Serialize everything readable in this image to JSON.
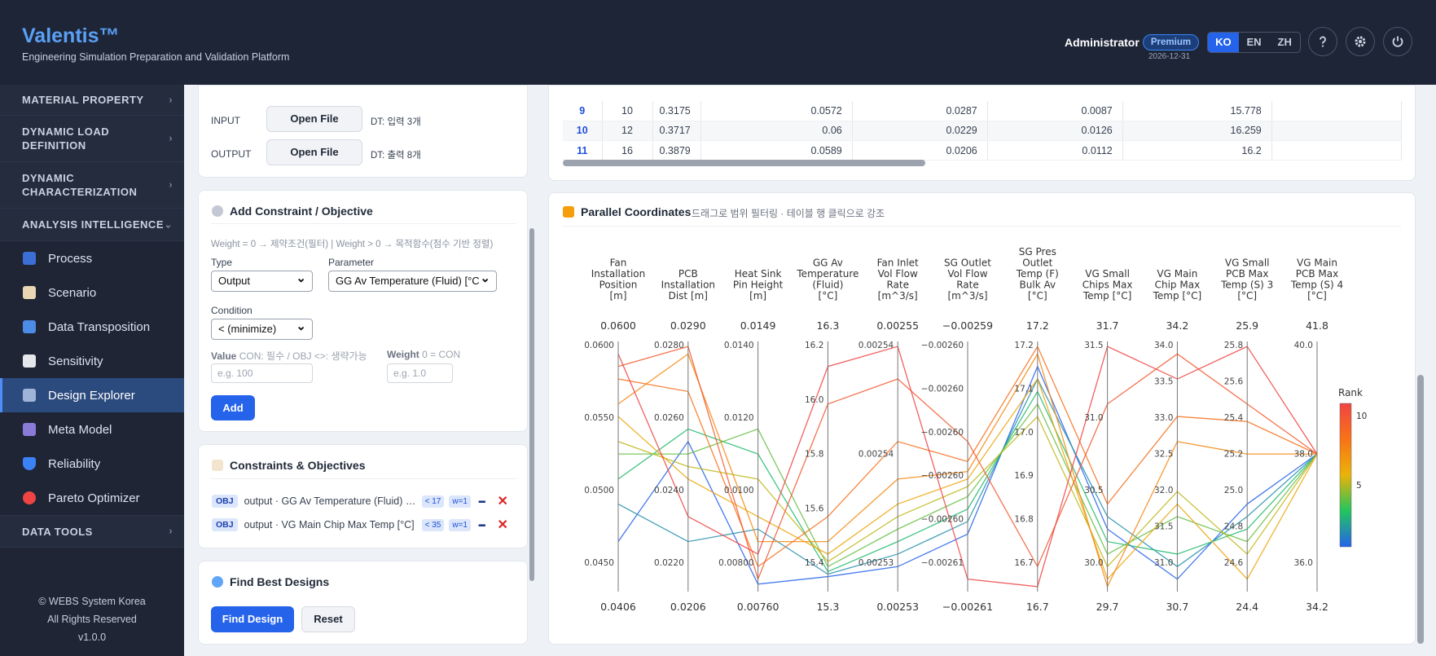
{
  "header": {
    "brand": "Valentis™",
    "tagline": "Engineering Simulation Preparation and Validation Platform",
    "user": "Administrator",
    "badge": "Premium",
    "expiry": "2026-12-31",
    "langs": [
      "KO",
      "EN",
      "ZH"
    ],
    "active_lang": "KO",
    "icons": [
      "help-icon",
      "settings-icon",
      "power-icon"
    ]
  },
  "sidebar": {
    "sections_top": [
      {
        "label": "MATERIAL PROPERTY"
      },
      {
        "label": "DYNAMIC LOAD DEFINITION"
      },
      {
        "label": "DYNAMIC CHARACTERIZATION"
      },
      {
        "label": "ANALYSIS INTELLIGENCE"
      }
    ],
    "items": [
      {
        "label": "Process",
        "icon": "book-icon"
      },
      {
        "label": "Scenario",
        "icon": "clipboard-icon"
      },
      {
        "label": "Data Transposition",
        "icon": "transpose-icon"
      },
      {
        "label": "Sensitivity",
        "icon": "trend-chart-icon"
      },
      {
        "label": "Design Explorer",
        "icon": "flask-icon"
      },
      {
        "label": "Meta Model",
        "icon": "robot-icon"
      },
      {
        "label": "Reliability",
        "icon": "shield-icon"
      },
      {
        "label": "Pareto Optimizer",
        "icon": "target-icon"
      }
    ],
    "active_item": "Design Explorer",
    "data_tools": "DATA TOOLS",
    "footer": [
      "© WEBS System Korea",
      "All Rights Reserved",
      "v1.0.0"
    ]
  },
  "files": {
    "input_label": "INPUT",
    "output_label": "OUTPUT",
    "button": "Open File",
    "input_note": "DT: 입력 3개",
    "output_note": "DT: 출력 8개"
  },
  "constraint": {
    "title": "Add Constraint / Objective",
    "hint": "Weight = 0 → 제약조건(필터) | Weight > 0 → 목적함수(점수 기반 정렬)",
    "type_label": "Type",
    "type_value": "Output",
    "param_label": "Parameter",
    "param_value": "GG Av Temperature (Fluid) [°C",
    "cond_label": "Condition",
    "cond_value": "< (minimize)",
    "value_label": "Value",
    "value_note": "CON: 필수 / OBJ <>: 생략가능",
    "weight_label": "Weight",
    "weight_note": "0 = CON",
    "value_placeholder": "e.g. 100",
    "weight_placeholder": "e.g. 1.0",
    "add": "Add"
  },
  "constraints_list": {
    "title": "Constraints & Objectives",
    "rows": [
      {
        "tag": "OBJ",
        "text": "output · GG Av Temperature (Fluid) [°C]",
        "limit": "< 17",
        "w": "w=1"
      },
      {
        "tag": "OBJ",
        "text": "output · VG Main Chip Max Temp [°C]",
        "limit": "< 35",
        "w": "w=1"
      }
    ]
  },
  "best": {
    "title": "Find Best Designs",
    "find": "Find Design",
    "reset": "Reset"
  },
  "table": {
    "rows": [
      [
        "9",
        "10",
        "0.3175",
        "0.0572",
        "0.0287",
        "0.0087",
        "15.778"
      ],
      [
        "10",
        "12",
        "0.3717",
        "0.06",
        "0.0229",
        "0.0126",
        "16.259"
      ],
      [
        "11",
        "16",
        "0.3879",
        "0.0589",
        "0.0206",
        "0.0112",
        "16.2"
      ]
    ]
  },
  "pc": {
    "title": "Parallel Coordinates",
    "subtitle": "드래그로 범위 필터링 · 테이블 행 클릭으로 강조"
  },
  "chart_data": {
    "type": "parallel-coordinates",
    "axes": [
      {
        "name": [
          "Fan",
          "Installation",
          "Position",
          "[m]"
        ],
        "top": "0.0600",
        "bottom": "0.0406",
        "ticks": [
          "0.0600",
          "0.0550",
          "0.0500",
          "0.0450"
        ]
      },
      {
        "name": [
          "PCB",
          "Installation",
          "Dist [m]"
        ],
        "top": "0.0290",
        "bottom": "0.0206",
        "ticks": [
          "0.0280",
          "0.0260",
          "0.0240",
          "0.0220"
        ]
      },
      {
        "name": [
          "Heat Sink",
          "Pin Height",
          "[m]"
        ],
        "top": "0.0149",
        "bottom": "0.00760",
        "ticks": [
          "0.0140",
          "0.0120",
          "0.0100",
          "0.00800"
        ]
      },
      {
        "name": [
          "GG Av",
          "Temperature",
          "(Fluid)",
          "[°C]"
        ],
        "top": "16.3",
        "bottom": "15.3",
        "ticks": [
          "16.2",
          "16.0",
          "15.8",
          "15.6",
          "15.4"
        ]
      },
      {
        "name": [
          "Fan Inlet",
          "Vol Flow",
          "Rate",
          "[m^3/s]"
        ],
        "top": "0.00255",
        "bottom": "0.00253",
        "ticks": [
          "0.00254",
          "0.00254",
          "0.00253"
        ]
      },
      {
        "name": [
          "SG Outlet",
          "Vol Flow",
          "Rate",
          "[m^3/s]"
        ],
        "top": "−0.00259",
        "bottom": "−0.00261",
        "ticks": [
          "−0.00260",
          "−0.00260",
          "−0.00260",
          "−0.00260",
          "−0.00260",
          "−0.00261"
        ]
      },
      {
        "name": [
          "SG Pres",
          "Outlet",
          "Temp (F)",
          "Bulk Av",
          "[°C]"
        ],
        "top": "17.2",
        "bottom": "16.7",
        "ticks": [
          "17.2",
          "17.1",
          "17.0",
          "16.9",
          "16.8",
          "16.7"
        ]
      },
      {
        "name": [
          "VG Small",
          "Chips Max",
          "Temp [°C]"
        ],
        "top": "31.7",
        "bottom": "29.7",
        "ticks": [
          "31.5",
          "31.0",
          "30.5",
          "30.0"
        ]
      },
      {
        "name": [
          "VG Main",
          "Chip Max",
          "Temp [°C]"
        ],
        "top": "34.2",
        "bottom": "30.7",
        "ticks": [
          "34.0",
          "33.5",
          "33.0",
          "32.5",
          "32.0",
          "31.5",
          "31.0"
        ]
      },
      {
        "name": [
          "VG Small",
          "PCB Max",
          "Temp (S) 3",
          "[°C]"
        ],
        "top": "25.9",
        "bottom": "24.4",
        "ticks": [
          "25.8",
          "25.6",
          "25.4",
          "25.2",
          "25.0",
          "24.8",
          "24.6"
        ]
      },
      {
        "name": [
          "VG Main",
          "PCB Max",
          "Temp (S) 4",
          "[°C]"
        ],
        "top": "41.8",
        "bottom": "34.2",
        "ticks": [
          "40.0",
          "38.0",
          "36.0"
        ]
      }
    ],
    "color_legend": {
      "title": "Rank",
      "ticks": [
        "10",
        "5"
      ]
    },
    "lines": [
      {
        "rank": 1,
        "f": [
          0.2,
          0.6,
          0.03,
          0.06,
          0.1,
          0.23,
          0.9,
          0.25,
          0.05,
          0.35,
          0.55
        ]
      },
      {
        "rank": 2,
        "f": [
          0.35,
          0.2,
          0.25,
          0.07,
          0.15,
          0.28,
          0.85,
          0.3,
          0.1,
          0.3,
          0.55
        ]
      },
      {
        "rank": 3,
        "f": [
          0.45,
          0.65,
          0.55,
          0.08,
          0.2,
          0.33,
          0.8,
          0.2,
          0.15,
          0.25,
          0.55
        ]
      },
      {
        "rank": 4,
        "f": [
          0.55,
          0.55,
          0.65,
          0.1,
          0.25,
          0.38,
          0.75,
          0.15,
          0.3,
          0.2,
          0.55
        ]
      },
      {
        "rank": 5,
        "f": [
          0.6,
          0.5,
          0.45,
          0.12,
          0.3,
          0.42,
          0.7,
          0.1,
          0.4,
          0.15,
          0.55
        ]
      },
      {
        "rank": 6,
        "f": [
          0.7,
          0.45,
          0.3,
          0.15,
          0.35,
          0.45,
          0.85,
          0.05,
          0.35,
          0.05,
          0.55
        ]
      },
      {
        "rank": 7,
        "f": [
          0.75,
          0.95,
          0.2,
          0.2,
          0.45,
          0.48,
          0.95,
          0.02,
          0.6,
          0.55,
          0.55
        ]
      },
      {
        "rank": 8,
        "f": [
          0.85,
          0.8,
          0.1,
          0.3,
          0.6,
          0.52,
          0.98,
          0.35,
          0.7,
          0.68,
          0.55
        ]
      },
      {
        "rank": 9,
        "f": [
          0.9,
          0.98,
          0.05,
          0.75,
          0.85,
          0.6,
          0.1,
          0.75,
          0.95,
          0.75,
          0.55
        ]
      },
      {
        "rank": 10,
        "f": [
          0.95,
          0.3,
          0.15,
          0.9,
          0.98,
          0.05,
          0.02,
          0.98,
          0.85,
          0.98,
          0.55
        ]
      }
    ]
  }
}
